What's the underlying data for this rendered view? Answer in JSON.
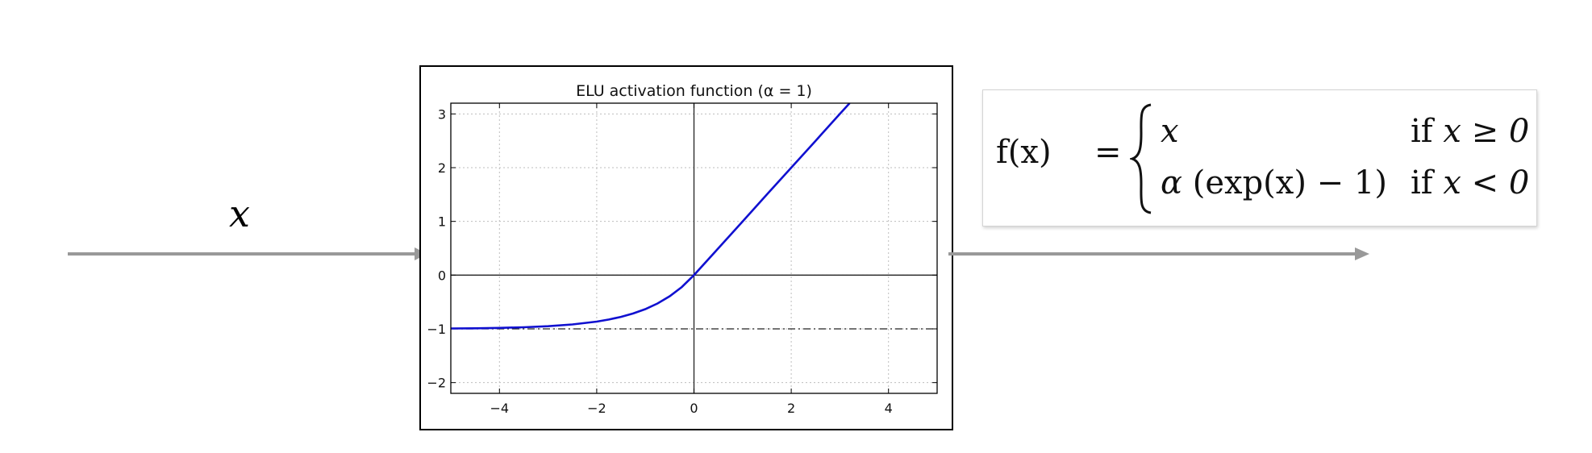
{
  "input_label": "x",
  "chart_data": {
    "type": "line",
    "title": "ELU activation function (α = 1)",
    "xlabel": "",
    "ylabel": "",
    "xlim": [
      -5,
      5
    ],
    "ylim": [
      -2.2,
      3.2
    ],
    "x_ticks": [
      -4,
      -2,
      0,
      2,
      4
    ],
    "x_tick_labels": [
      "−4",
      "−2",
      "0",
      "2",
      "4"
    ],
    "y_ticks": [
      -2,
      -1,
      0,
      1,
      2,
      3
    ],
    "y_tick_labels": [
      "−2",
      "−1",
      "0",
      "1",
      "2",
      "3"
    ],
    "grid": true,
    "series": [
      {
        "color": "#1010d0",
        "x": [
          -5,
          -4.5,
          -4,
          -3.5,
          -3,
          -2.5,
          -2,
          -1.75,
          -1.5,
          -1.25,
          -1,
          -0.75,
          -0.5,
          -0.25,
          0,
          0.5,
          1,
          1.5,
          2,
          2.5,
          3,
          3.2
        ],
        "y": [
          -0.993,
          -0.989,
          -0.982,
          -0.97,
          -0.95,
          -0.918,
          -0.865,
          -0.826,
          -0.777,
          -0.713,
          -0.632,
          -0.528,
          -0.393,
          -0.221,
          0,
          0.5,
          1,
          1.5,
          2,
          2.5,
          3,
          3.2
        ]
      }
    ],
    "reference_lines": [
      {
        "orientation": "horizontal",
        "y": 0,
        "style": "solid"
      },
      {
        "orientation": "vertical",
        "x": 0,
        "style": "solid"
      },
      {
        "orientation": "horizontal",
        "y": -1,
        "style": "dash-dot"
      }
    ]
  },
  "formula": {
    "lhs": "f(x)",
    "eq": "=",
    "case1_expr": "x",
    "case1_cond_if": "if",
    "case1_cond_rest": "x ≥ 0",
    "case2_expr_alpha": "α",
    "case2_expr_rest": "(exp(x) − 1)",
    "case2_cond_if": "if",
    "case2_cond_rest": "x < 0"
  },
  "colors": {
    "arrow": "#999999",
    "curve": "#1010d0"
  }
}
